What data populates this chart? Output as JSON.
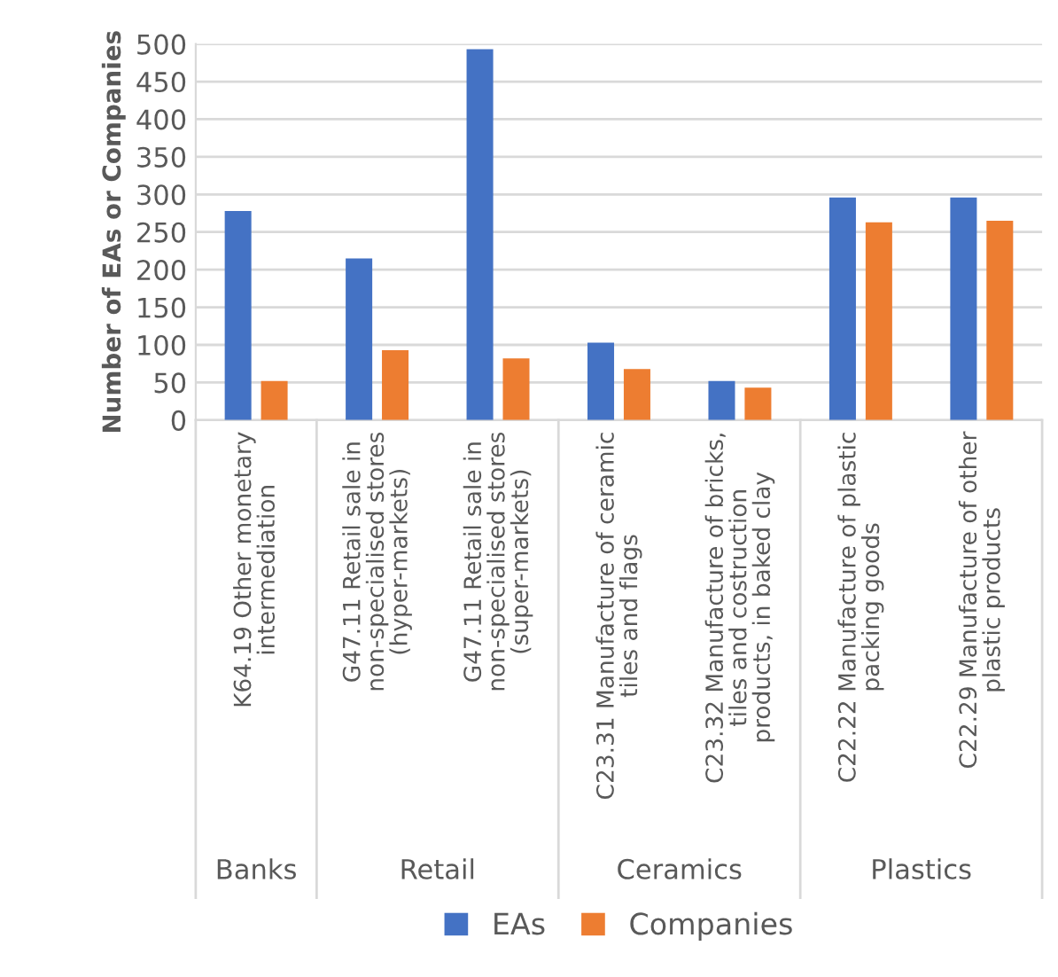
{
  "chart_data": {
    "type": "bar",
    "ylabel": "Number of EAs or Companies",
    "categories": [
      "K64.19 Other monetary intermediation",
      "G47.11 Retail sale in non-specialised stores (hyper-markets)",
      "G47.11 Retail sale in non-specialised stores (super-markets)",
      "C23.31 Manufacture of ceramic tiles and flags",
      "C23.32 Manufacture of bricks, tiles and costruction products, in baked clay",
      "C22.22 Manufacture of plastic packing goods",
      "C22.29 Manufacture of other plastic products"
    ],
    "series": [
      {
        "name": "EAs",
        "color": "#4472c4",
        "values": [
          278,
          215,
          493,
          103,
          52,
          296,
          296
        ]
      },
      {
        "name": "Companies",
        "color": "#ed7d31",
        "values": [
          52,
          93,
          82,
          68,
          43,
          263,
          265
        ]
      }
    ],
    "annotations": [
      "Banks",
      "Retail",
      "Ceramics",
      "Plastics"
    ],
    "ylim": [
      0,
      500
    ],
    "yticks": [
      0,
      50,
      100,
      150,
      200,
      250,
      300,
      350,
      400,
      450,
      500
    ],
    "grid": "y",
    "legend": "bottom"
  }
}
